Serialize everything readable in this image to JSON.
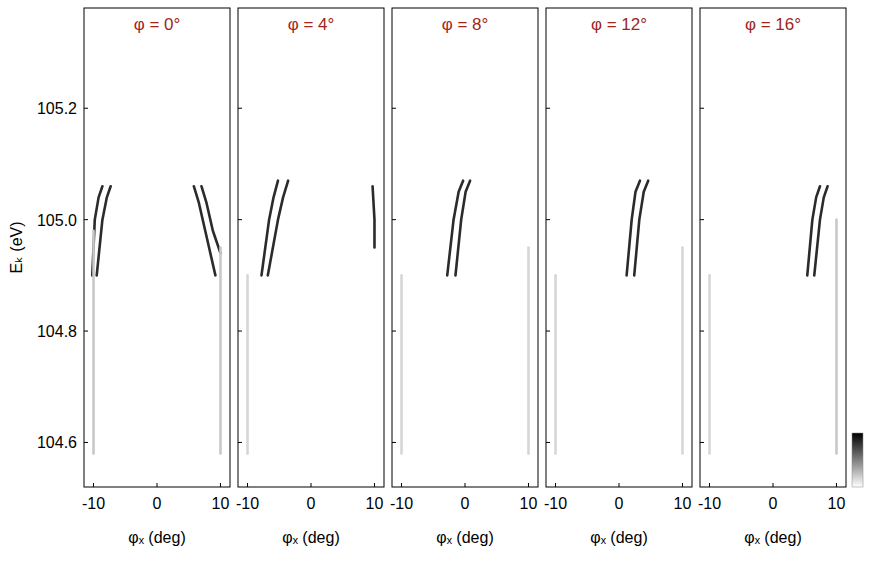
{
  "chart_data": [
    {
      "type": "line",
      "title": "φ = 0°",
      "x_label": "φₓ (deg)",
      "y_label": "Eₖ (eV)",
      "xlim": [
        -11.5,
        11.5
      ],
      "ylim": [
        104.52,
        105.38
      ],
      "xticks": [
        -10,
        0,
        10
      ],
      "yticks": [
        104.6,
        104.8,
        {
          "value": 105,
          "label": "105.0"
        },
        105.2
      ],
      "line_style": "solid",
      "series": [
        {
          "color": "#2b2b2b",
          "x": [
            -10.2,
            -9.8,
            -9.2,
            -8.6
          ],
          "values": [
            104.9,
            105.0,
            105.04,
            105.06
          ]
        },
        {
          "color": "#2b2b2b",
          "x": [
            -9.5,
            -8.6,
            -7.9,
            -7.3
          ],
          "values": [
            104.9,
            105.0,
            105.04,
            105.06
          ]
        },
        {
          "color": "#2b2b2b",
          "x": [
            5.8,
            6.6,
            7.6,
            9.2
          ],
          "values": [
            105.06,
            105.03,
            104.98,
            104.9
          ]
        },
        {
          "color": "#2b2b2b",
          "x": [
            7.0,
            7.8,
            8.8,
            10.0
          ],
          "values": [
            105.06,
            105.03,
            104.98,
            104.94
          ]
        },
        {
          "color": "#c8c8c8",
          "x": [
            -10.0,
            -10.0
          ],
          "values": [
            104.58,
            104.98
          ]
        },
        {
          "color": "#c8c8c8",
          "x": [
            10.0,
            10.0
          ],
          "values": [
            104.58,
            104.95
          ]
        }
      ]
    },
    {
      "type": "line",
      "title": "φ = 4°",
      "x_label": "φₓ (deg)",
      "xlim": [
        -11.5,
        11.5
      ],
      "ylim": [
        104.52,
        105.38
      ],
      "xticks": [
        -10,
        0,
        10
      ],
      "yticks": [
        104.6,
        104.8,
        {
          "value": 105,
          "label": "105.0"
        },
        105.2
      ],
      "tick_labels": "x",
      "line_style": "solid",
      "series": [
        {
          "color": "#2b2b2b",
          "x": [
            -7.8,
            -6.6,
            -5.9,
            -5.2
          ],
          "values": [
            104.9,
            105.0,
            105.04,
            105.07
          ]
        },
        {
          "color": "#2b2b2b",
          "x": [
            -6.8,
            -5.2,
            -4.4,
            -3.6
          ],
          "values": [
            104.9,
            105.0,
            105.04,
            105.07
          ]
        },
        {
          "color": "#2b2b2b",
          "x": [
            9.7,
            10.0,
            10.0
          ],
          "values": [
            105.06,
            105.0,
            104.95
          ]
        },
        {
          "color": "#d6d6d6",
          "x": [
            -10.0,
            -10.0
          ],
          "values": [
            104.58,
            104.9
          ]
        }
      ]
    },
    {
      "type": "line",
      "title": "φ = 8°",
      "x_label": "φₓ (deg)",
      "xlim": [
        -11.5,
        11.5
      ],
      "ylim": [
        104.52,
        105.38
      ],
      "xticks": [
        -10,
        0,
        10
      ],
      "yticks": [
        104.6,
        104.8,
        {
          "value": 105,
          "label": "105.0"
        },
        105.2
      ],
      "tick_labels": "x",
      "line_style": "solid",
      "series": [
        {
          "color": "#2b2b2b",
          "x": [
            -2.8,
            -1.8,
            -1.0,
            -0.3
          ],
          "values": [
            104.9,
            105.0,
            105.05,
            105.07
          ]
        },
        {
          "color": "#2b2b2b",
          "x": [
            -1.5,
            -0.6,
            0.1,
            0.8
          ],
          "values": [
            104.9,
            105.0,
            105.05,
            105.07
          ]
        },
        {
          "color": "#d6d6d6",
          "x": [
            -10.0,
            -10.0
          ],
          "values": [
            104.58,
            104.9
          ]
        },
        {
          "color": "#d6d6d6",
          "x": [
            10.0,
            10.0
          ],
          "values": [
            104.58,
            104.95
          ]
        }
      ]
    },
    {
      "type": "line",
      "title": "φ = 12°",
      "x_label": "φₓ (deg)",
      "xlim": [
        -11.5,
        11.5
      ],
      "ylim": [
        104.52,
        105.38
      ],
      "xticks": [
        -10,
        0,
        10
      ],
      "yticks": [
        104.6,
        104.8,
        {
          "value": 105,
          "label": "105.0"
        },
        105.2
      ],
      "tick_labels": "x",
      "line_style": "solid",
      "series": [
        {
          "color": "#2b2b2b",
          "x": [
            1.2,
            2.0,
            2.6,
            3.3
          ],
          "values": [
            104.9,
            105.0,
            105.05,
            105.07
          ]
        },
        {
          "color": "#2b2b2b",
          "x": [
            2.4,
            3.2,
            3.9,
            4.6
          ],
          "values": [
            104.9,
            105.0,
            105.05,
            105.07
          ]
        },
        {
          "color": "#d6d6d6",
          "x": [
            -10.0,
            -10.0
          ],
          "values": [
            104.58,
            104.9
          ]
        },
        {
          "color": "#d6d6d6",
          "x": [
            10.0,
            10.0
          ],
          "values": [
            104.58,
            104.95
          ]
        }
      ]
    },
    {
      "type": "line",
      "title": "φ = 16°",
      "x_label": "φₓ (deg)",
      "xlim": [
        -11.5,
        11.5
      ],
      "ylim": [
        104.52,
        105.38
      ],
      "xticks": [
        -10,
        0,
        10
      ],
      "yticks": [
        104.6,
        104.8,
        {
          "value": 105,
          "label": "105.0"
        },
        105.2
      ],
      "tick_labels": "x",
      "line_style": "solid",
      "series": [
        {
          "color": "#2b2b2b",
          "x": [
            5.4,
            6.2,
            6.8,
            7.4
          ],
          "values": [
            104.9,
            105.0,
            105.04,
            105.06
          ]
        },
        {
          "color": "#2b2b2b",
          "x": [
            6.5,
            7.4,
            8.0,
            8.6
          ],
          "values": [
            104.9,
            105.0,
            105.04,
            105.06
          ]
        },
        {
          "color": "#d6d6d6",
          "x": [
            -10.0,
            -10.0
          ],
          "values": [
            104.58,
            104.9
          ]
        },
        {
          "color": "#c8c8c8",
          "x": [
            10.0,
            10.0
          ],
          "values": [
            104.58,
            105.0
          ]
        }
      ]
    }
  ]
}
